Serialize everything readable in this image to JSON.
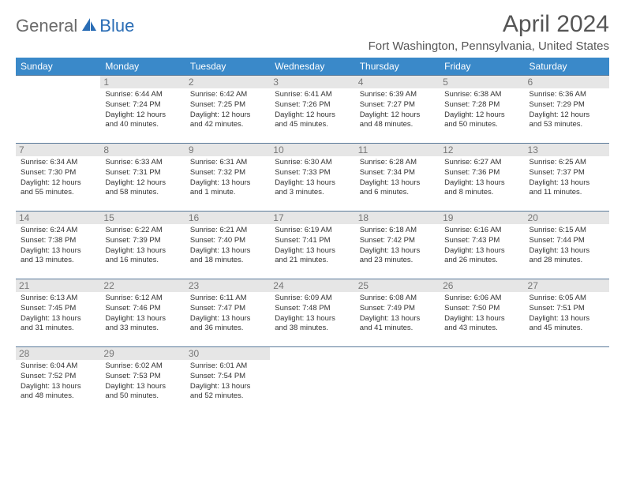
{
  "brand": {
    "general": "General",
    "blue": "Blue"
  },
  "title": "April 2024",
  "location": "Fort Washington, Pennsylvania, United States",
  "colors": {
    "header_bg": "#3a89c9",
    "header_text": "#ffffff",
    "daynum_bg": "#e6e6e6",
    "daynum_text": "#777777",
    "border": "#5a7a9a",
    "title_text": "#555555",
    "logo_gray": "#6b6b6b",
    "logo_blue": "#2a6db5"
  },
  "weekdays": [
    "Sunday",
    "Monday",
    "Tuesday",
    "Wednesday",
    "Thursday",
    "Friday",
    "Saturday"
  ],
  "weeks": [
    [
      null,
      {
        "n": "1",
        "sr": "6:44 AM",
        "ss": "7:24 PM",
        "d1": "12 hours",
        "d2": "and 40 minutes."
      },
      {
        "n": "2",
        "sr": "6:42 AM",
        "ss": "7:25 PM",
        "d1": "12 hours",
        "d2": "and 42 minutes."
      },
      {
        "n": "3",
        "sr": "6:41 AM",
        "ss": "7:26 PM",
        "d1": "12 hours",
        "d2": "and 45 minutes."
      },
      {
        "n": "4",
        "sr": "6:39 AM",
        "ss": "7:27 PM",
        "d1": "12 hours",
        "d2": "and 48 minutes."
      },
      {
        "n": "5",
        "sr": "6:38 AM",
        "ss": "7:28 PM",
        "d1": "12 hours",
        "d2": "and 50 minutes."
      },
      {
        "n": "6",
        "sr": "6:36 AM",
        "ss": "7:29 PM",
        "d1": "12 hours",
        "d2": "and 53 minutes."
      }
    ],
    [
      {
        "n": "7",
        "sr": "6:34 AM",
        "ss": "7:30 PM",
        "d1": "12 hours",
        "d2": "and 55 minutes."
      },
      {
        "n": "8",
        "sr": "6:33 AM",
        "ss": "7:31 PM",
        "d1": "12 hours",
        "d2": "and 58 minutes."
      },
      {
        "n": "9",
        "sr": "6:31 AM",
        "ss": "7:32 PM",
        "d1": "13 hours",
        "d2": "and 1 minute."
      },
      {
        "n": "10",
        "sr": "6:30 AM",
        "ss": "7:33 PM",
        "d1": "13 hours",
        "d2": "and 3 minutes."
      },
      {
        "n": "11",
        "sr": "6:28 AM",
        "ss": "7:34 PM",
        "d1": "13 hours",
        "d2": "and 6 minutes."
      },
      {
        "n": "12",
        "sr": "6:27 AM",
        "ss": "7:36 PM",
        "d1": "13 hours",
        "d2": "and 8 minutes."
      },
      {
        "n": "13",
        "sr": "6:25 AM",
        "ss": "7:37 PM",
        "d1": "13 hours",
        "d2": "and 11 minutes."
      }
    ],
    [
      {
        "n": "14",
        "sr": "6:24 AM",
        "ss": "7:38 PM",
        "d1": "13 hours",
        "d2": "and 13 minutes."
      },
      {
        "n": "15",
        "sr": "6:22 AM",
        "ss": "7:39 PM",
        "d1": "13 hours",
        "d2": "and 16 minutes."
      },
      {
        "n": "16",
        "sr": "6:21 AM",
        "ss": "7:40 PM",
        "d1": "13 hours",
        "d2": "and 18 minutes."
      },
      {
        "n": "17",
        "sr": "6:19 AM",
        "ss": "7:41 PM",
        "d1": "13 hours",
        "d2": "and 21 minutes."
      },
      {
        "n": "18",
        "sr": "6:18 AM",
        "ss": "7:42 PM",
        "d1": "13 hours",
        "d2": "and 23 minutes."
      },
      {
        "n": "19",
        "sr": "6:16 AM",
        "ss": "7:43 PM",
        "d1": "13 hours",
        "d2": "and 26 minutes."
      },
      {
        "n": "20",
        "sr": "6:15 AM",
        "ss": "7:44 PM",
        "d1": "13 hours",
        "d2": "and 28 minutes."
      }
    ],
    [
      {
        "n": "21",
        "sr": "6:13 AM",
        "ss": "7:45 PM",
        "d1": "13 hours",
        "d2": "and 31 minutes."
      },
      {
        "n": "22",
        "sr": "6:12 AM",
        "ss": "7:46 PM",
        "d1": "13 hours",
        "d2": "and 33 minutes."
      },
      {
        "n": "23",
        "sr": "6:11 AM",
        "ss": "7:47 PM",
        "d1": "13 hours",
        "d2": "and 36 minutes."
      },
      {
        "n": "24",
        "sr": "6:09 AM",
        "ss": "7:48 PM",
        "d1": "13 hours",
        "d2": "and 38 minutes."
      },
      {
        "n": "25",
        "sr": "6:08 AM",
        "ss": "7:49 PM",
        "d1": "13 hours",
        "d2": "and 41 minutes."
      },
      {
        "n": "26",
        "sr": "6:06 AM",
        "ss": "7:50 PM",
        "d1": "13 hours",
        "d2": "and 43 minutes."
      },
      {
        "n": "27",
        "sr": "6:05 AM",
        "ss": "7:51 PM",
        "d1": "13 hours",
        "d2": "and 45 minutes."
      }
    ],
    [
      {
        "n": "28",
        "sr": "6:04 AM",
        "ss": "7:52 PM",
        "d1": "13 hours",
        "d2": "and 48 minutes."
      },
      {
        "n": "29",
        "sr": "6:02 AM",
        "ss": "7:53 PM",
        "d1": "13 hours",
        "d2": "and 50 minutes."
      },
      {
        "n": "30",
        "sr": "6:01 AM",
        "ss": "7:54 PM",
        "d1": "13 hours",
        "d2": "and 52 minutes."
      },
      null,
      null,
      null,
      null
    ]
  ],
  "labels": {
    "sunrise": "Sunrise:",
    "sunset": "Sunset:",
    "daylight": "Daylight:"
  }
}
